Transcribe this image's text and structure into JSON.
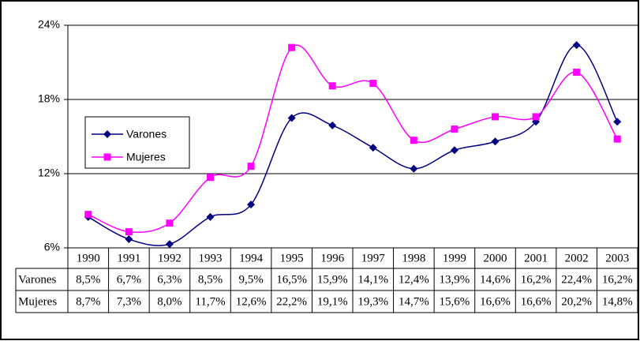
{
  "chart_data": {
    "type": "line",
    "categories": [
      "1990",
      "1991",
      "1992",
      "1993",
      "1994",
      "1995",
      "1996",
      "1997",
      "1998",
      "1999",
      "2000",
      "2001",
      "2002",
      "2003"
    ],
    "series": [
      {
        "name": "Varones",
        "color": "#000080",
        "marker": "diamond",
        "values": [
          8.5,
          6.7,
          6.3,
          8.5,
          9.5,
          16.5,
          15.9,
          14.1,
          12.4,
          13.9,
          14.6,
          16.2,
          22.4,
          16.2
        ],
        "value_labels": [
          "8,5%",
          "6,7%",
          "6,3%",
          "8,5%",
          "9,5%",
          "16,5%",
          "15,9%",
          "14,1%",
          "12,4%",
          "13,9%",
          "14,6%",
          "16,2%",
          "22,4%",
          "16,2%"
        ]
      },
      {
        "name": "Mujeres",
        "color": "#ff00ff",
        "marker": "square",
        "values": [
          8.7,
          7.3,
          8.0,
          11.7,
          12.6,
          22.2,
          19.1,
          19.3,
          14.7,
          15.6,
          16.6,
          16.6,
          20.2,
          14.8
        ],
        "value_labels": [
          "8,7%",
          "7,3%",
          "8,0%",
          "11,7%",
          "12,6%",
          "22,2%",
          "19,1%",
          "19,3%",
          "14,7%",
          "15,6%",
          "16,6%",
          "16,6%",
          "20,2%",
          "14,8%"
        ]
      }
    ],
    "ylim": [
      6,
      24
    ],
    "yticks": [
      {
        "value": 6,
        "label": "6%"
      },
      {
        "value": 12,
        "label": "12%"
      },
      {
        "value": 18,
        "label": "18%"
      },
      {
        "value": 24,
        "label": "24%"
      }
    ],
    "grid": true,
    "legend": "left",
    "smooth": true,
    "data_table": true
  }
}
